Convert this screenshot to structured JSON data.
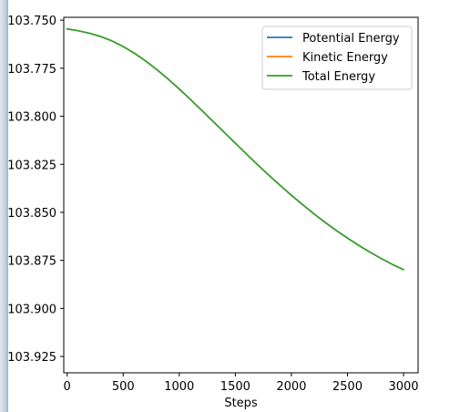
{
  "window": {
    "edge_color": "#c5d3e0"
  },
  "chart_data": {
    "type": "line",
    "xlabel": "Steps",
    "ylabel": "",
    "xlim": [
      -30,
      3130
    ],
    "ylim": [
      -103.9335,
      -103.7485
    ],
    "x_ticks": [
      0,
      500,
      1000,
      1500,
      2000,
      2500,
      3000
    ],
    "x_tick_labels": [
      "0",
      "500",
      "1000",
      "1500",
      "2000",
      "2500",
      "3000"
    ],
    "y_ticks": [
      -103.75,
      -103.775,
      -103.8,
      -103.825,
      -103.85,
      -103.875,
      -103.9,
      -103.925
    ],
    "y_tick_labels": [
      "103.750",
      "103.775",
      "103.800",
      "103.825",
      "103.850",
      "103.875",
      "103.900",
      "103.925"
    ],
    "grid": false,
    "legend_position": "top-right",
    "series": [
      {
        "name": "Potential Energy",
        "color": "#1f77b4",
        "x": [
          0,
          100,
          200,
          300,
          400,
          500,
          600,
          700,
          800,
          900,
          1000,
          1100,
          1200,
          1300,
          1400,
          1500,
          1600,
          1700,
          1800,
          1900,
          2000,
          2100,
          2200,
          2300,
          2400,
          2500,
          2600,
          2700,
          2800,
          2900,
          3000
        ],
        "y": [
          -103.7545,
          -103.7555,
          -103.7568,
          -103.7585,
          -103.7608,
          -103.7637,
          -103.7672,
          -103.7712,
          -103.7757,
          -103.7806,
          -103.7858,
          -103.7913,
          -103.7969,
          -103.8026,
          -103.8083,
          -103.814,
          -103.8197,
          -103.8253,
          -103.8307,
          -103.836,
          -103.8411,
          -103.846,
          -103.8507,
          -103.8552,
          -103.8594,
          -103.8634,
          -103.8672,
          -103.8707,
          -103.874,
          -103.8771,
          -103.8798
        ]
      },
      {
        "name": "Kinetic Energy",
        "color": "#ff7f0e",
        "x": [
          0,
          100,
          200,
          300,
          400,
          500,
          600,
          700,
          800,
          900,
          1000,
          1100,
          1200,
          1300,
          1400,
          1500,
          1600,
          1700,
          1800,
          1900,
          2000,
          2100,
          2200,
          2300,
          2400,
          2500,
          2600,
          2700,
          2800,
          2900,
          3000
        ],
        "y": [
          -103.7545,
          -103.7555,
          -103.7568,
          -103.7585,
          -103.7608,
          -103.7637,
          -103.7672,
          -103.7712,
          -103.7757,
          -103.7806,
          -103.7858,
          -103.7913,
          -103.7969,
          -103.8026,
          -103.8083,
          -103.814,
          -103.8197,
          -103.8253,
          -103.8307,
          -103.836,
          -103.8411,
          -103.846,
          -103.8507,
          -103.8552,
          -103.8594,
          -103.8634,
          -103.8672,
          -103.8707,
          -103.874,
          -103.8771,
          -103.8798
        ]
      },
      {
        "name": "Total Energy",
        "color": "#2ca02c",
        "x": [
          0,
          100,
          200,
          300,
          400,
          500,
          600,
          700,
          800,
          900,
          1000,
          1100,
          1200,
          1300,
          1400,
          1500,
          1600,
          1700,
          1800,
          1900,
          2000,
          2100,
          2200,
          2300,
          2400,
          2500,
          2600,
          2700,
          2800,
          2900,
          3000
        ],
        "y": [
          -103.7545,
          -103.7555,
          -103.7568,
          -103.7585,
          -103.7608,
          -103.7637,
          -103.7672,
          -103.7712,
          -103.7757,
          -103.7806,
          -103.7858,
          -103.7913,
          -103.7969,
          -103.8026,
          -103.8083,
          -103.814,
          -103.8197,
          -103.8253,
          -103.8307,
          -103.836,
          -103.8411,
          -103.846,
          -103.8507,
          -103.8552,
          -103.8594,
          -103.8634,
          -103.8672,
          -103.8707,
          -103.874,
          -103.8771,
          -103.8798
        ]
      }
    ]
  }
}
